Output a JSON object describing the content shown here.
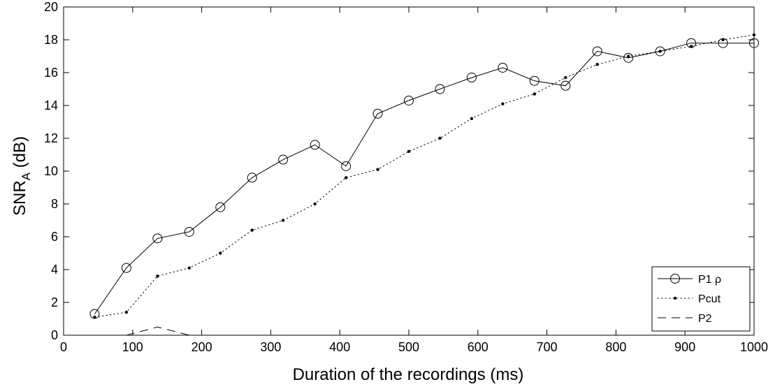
{
  "chart_data": {
    "type": "line",
    "title": "",
    "xlabel": "Duration of the recordings (ms)",
    "ylabel": {
      "main": "SNR",
      "subscript": "A",
      "suffix": " (dB)"
    },
    "xlim": [
      0,
      1000
    ],
    "ylim": [
      0,
      20
    ],
    "xticks": [
      0,
      100,
      200,
      300,
      400,
      500,
      600,
      700,
      800,
      900,
      1000
    ],
    "yticks": [
      0,
      2,
      4,
      6,
      8,
      10,
      12,
      14,
      16,
      18,
      20
    ],
    "grid": false,
    "legend_position": "bottom-right",
    "series": [
      {
        "name": "P1 ρ",
        "style": "solid-circle",
        "color": "#000000",
        "x": [
          45,
          91,
          136,
          182,
          227,
          273,
          318,
          364,
          409,
          455,
          500,
          545,
          591,
          636,
          682,
          727,
          773,
          818,
          864,
          909,
          955,
          1000
        ],
        "y": [
          1.3,
          4.1,
          5.9,
          6.3,
          7.8,
          9.6,
          10.7,
          11.6,
          10.3,
          13.5,
          14.3,
          15.0,
          15.7,
          16.3,
          15.5,
          15.2,
          17.3,
          16.9,
          17.3,
          17.8,
          17.8,
          17.8
        ]
      },
      {
        "name": "Pcut",
        "style": "dotted-dot",
        "color": "#000000",
        "x": [
          45,
          91,
          136,
          182,
          227,
          273,
          318,
          364,
          409,
          455,
          500,
          545,
          591,
          636,
          682,
          727,
          773,
          818,
          864,
          909,
          955,
          1000
        ],
        "y": [
          1.1,
          1.4,
          3.6,
          4.1,
          5.0,
          6.4,
          7.0,
          8.0,
          9.6,
          10.1,
          11.2,
          12.0,
          13.2,
          14.1,
          14.7,
          15.7,
          16.5,
          17.0,
          17.3,
          17.6,
          18.0,
          18.3
        ]
      },
      {
        "name": "P2",
        "style": "dashed",
        "color": "#000000",
        "x": [
          91,
          136,
          182,
          227,
          273,
          318,
          364,
          409,
          455,
          500,
          545,
          591,
          636,
          682,
          727,
          773,
          818,
          864,
          909,
          955,
          1000
        ],
        "y": [
          0.0,
          0.5,
          0.0,
          0.0,
          0.0,
          0.0,
          0.0,
          0.0,
          0.0,
          0.0,
          0.0,
          0.0,
          0.0,
          0.0,
          0.0,
          0.0,
          0.0,
          0.0,
          0.0,
          0.0,
          0.0
        ]
      }
    ]
  }
}
